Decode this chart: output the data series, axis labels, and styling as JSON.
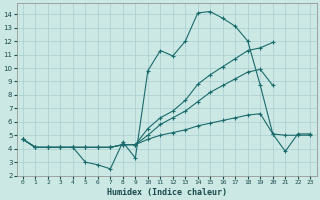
{
  "title": "",
  "xlabel": "Humidex (Indice chaleur)",
  "background_color": "#cce8e4",
  "grid_color": "#aaced0",
  "line_color": "#1a6b6b",
  "xlim": [
    -0.5,
    23.5
  ],
  "ylim": [
    2,
    14.8
  ],
  "xticks": [
    0,
    1,
    2,
    3,
    4,
    5,
    6,
    7,
    8,
    9,
    10,
    11,
    12,
    13,
    14,
    15,
    16,
    17,
    18,
    19,
    20,
    21,
    22,
    23
  ],
  "yticks": [
    2,
    3,
    4,
    5,
    6,
    7,
    8,
    9,
    10,
    11,
    12,
    13,
    14
  ],
  "line1_x": [
    0,
    1,
    2,
    3,
    4,
    5,
    6,
    7,
    8,
    9,
    10,
    11,
    12,
    13,
    14,
    15,
    16,
    17,
    18,
    19,
    20,
    21,
    22,
    23
  ],
  "line1_y": [
    4.7,
    4.1,
    4.1,
    4.1,
    4.1,
    3.0,
    2.8,
    2.5,
    4.5,
    3.3,
    9.8,
    11.3,
    10.9,
    12.0,
    14.1,
    14.2,
    13.7,
    13.1,
    12.0,
    8.7,
    5.1,
    3.8,
    5.1,
    5.1
  ],
  "line2_x": [
    0,
    1,
    2,
    3,
    4,
    5,
    6,
    7,
    8,
    9,
    10,
    11,
    12,
    13,
    14,
    15,
    16,
    17,
    18,
    19,
    20
  ],
  "line2_y": [
    4.7,
    4.1,
    4.1,
    4.1,
    4.1,
    4.1,
    4.1,
    4.1,
    4.3,
    4.3,
    5.5,
    6.3,
    6.8,
    7.6,
    8.8,
    9.5,
    10.1,
    10.7,
    11.3,
    11.5,
    11.9
  ],
  "line3_x": [
    0,
    1,
    2,
    3,
    4,
    5,
    6,
    7,
    8,
    9,
    10,
    11,
    12,
    13,
    14,
    15,
    16,
    17,
    18,
    19,
    20
  ],
  "line3_y": [
    4.7,
    4.1,
    4.1,
    4.1,
    4.1,
    4.1,
    4.1,
    4.1,
    4.3,
    4.3,
    5.0,
    5.8,
    6.3,
    6.8,
    7.5,
    8.2,
    8.7,
    9.2,
    9.7,
    9.9,
    8.7
  ],
  "line4_x": [
    0,
    1,
    2,
    3,
    4,
    5,
    6,
    7,
    8,
    9,
    10,
    11,
    12,
    13,
    14,
    15,
    16,
    17,
    18,
    19,
    20,
    21,
    22,
    23
  ],
  "line4_y": [
    4.7,
    4.1,
    4.1,
    4.1,
    4.1,
    4.1,
    4.1,
    4.1,
    4.3,
    4.3,
    4.7,
    5.0,
    5.2,
    5.4,
    5.7,
    5.9,
    6.1,
    6.3,
    6.5,
    6.6,
    5.1,
    5.0,
    5.0,
    5.0
  ]
}
